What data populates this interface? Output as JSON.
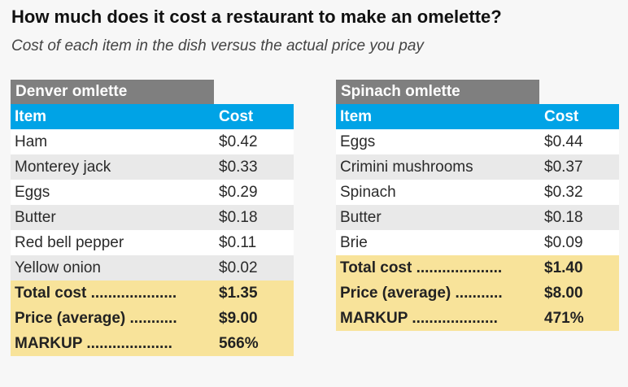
{
  "title": "How much does it cost a restaurant to make an omelette?",
  "subtitle": "Cost of each item in the dish versus the actual price you pay",
  "colors": {
    "header_blue": "#00a3e6",
    "table_name_gray": "#7f7f7f",
    "summary_yellow": "#f8e39a",
    "row_alt_gray": "#e9e9e9"
  },
  "denver": {
    "name": "Denver omlette",
    "col_item": "Item",
    "col_cost": "Cost",
    "rows": [
      {
        "item": "Ham",
        "cost": "$0.42"
      },
      {
        "item": "Monterey jack",
        "cost": "$0.33"
      },
      {
        "item": "Eggs",
        "cost": "$0.29"
      },
      {
        "item": "Butter",
        "cost": "$0.18"
      },
      {
        "item": "Red bell pepper",
        "cost": "$0.11"
      },
      {
        "item": "Yellow onion",
        "cost": "$0.02"
      }
    ],
    "summary": [
      {
        "label": "Total cost ....................",
        "value": "$1.35"
      },
      {
        "label": "Price (average) ...........",
        "value": "$9.00"
      },
      {
        "label": "MARKUP ....................",
        "value": "566%"
      }
    ]
  },
  "spinach": {
    "name": "Spinach omlette",
    "col_item": "Item",
    "col_cost": "Cost",
    "rows": [
      {
        "item": "Eggs",
        "cost": "$0.44"
      },
      {
        "item": "Crimini mushrooms",
        "cost": "$0.37"
      },
      {
        "item": "Spinach",
        "cost": "$0.32"
      },
      {
        "item": "Butter",
        "cost": "$0.18"
      },
      {
        "item": "Brie",
        "cost": "$0.09"
      }
    ],
    "summary": [
      {
        "label": "Total cost ....................",
        "value": "$1.40"
      },
      {
        "label": "Price (average) ...........",
        "value": "$8.00"
      },
      {
        "label": "MARKUP ....................",
        "value": "471%"
      }
    ]
  }
}
